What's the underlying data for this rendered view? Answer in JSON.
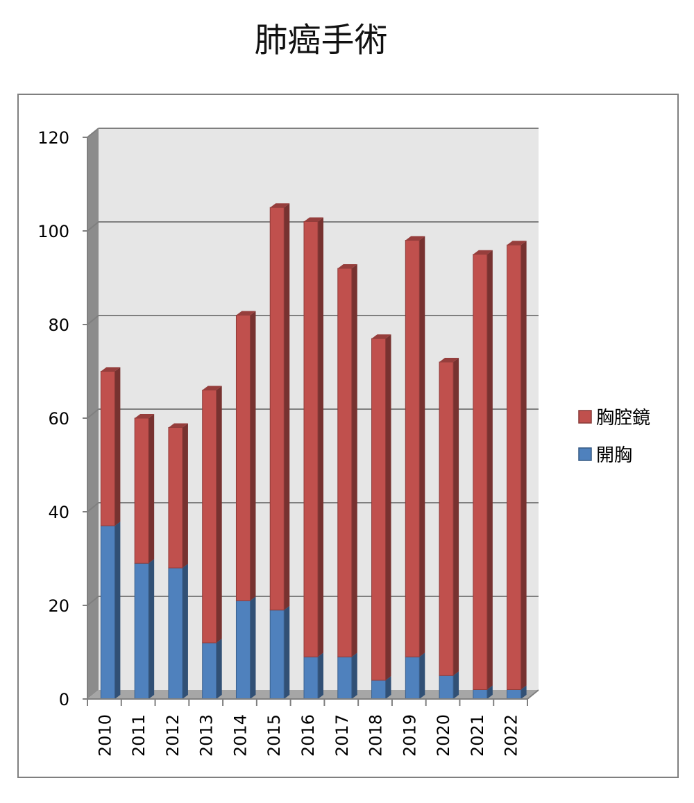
{
  "chart_data": {
    "type": "bar",
    "stacked": true,
    "title": "肺癌手術",
    "xlabel": "",
    "ylabel": "",
    "categories": [
      "2010",
      "2011",
      "2012",
      "2013",
      "2014",
      "2015",
      "2016",
      "2017",
      "2018",
      "2019",
      "2020",
      "2021",
      "2022"
    ],
    "series": [
      {
        "name": "開胸",
        "color": "#4F81BD",
        "values": [
          37,
          29,
          28,
          12,
          21,
          19,
          9,
          9,
          4,
          9,
          5,
          2,
          2
        ]
      },
      {
        "name": "胸腔鏡",
        "color": "#C0504D",
        "values": [
          33,
          31,
          30,
          54,
          61,
          86,
          93,
          83,
          73,
          89,
          67,
          93,
          95
        ]
      }
    ],
    "ylim": [
      0,
      120
    ],
    "yticks": [
      0,
      20,
      40,
      60,
      80,
      100,
      120
    ],
    "grid": true,
    "legend_position": "right",
    "legend_order": [
      "胸腔鏡",
      "開胸"
    ],
    "style": "3d"
  }
}
